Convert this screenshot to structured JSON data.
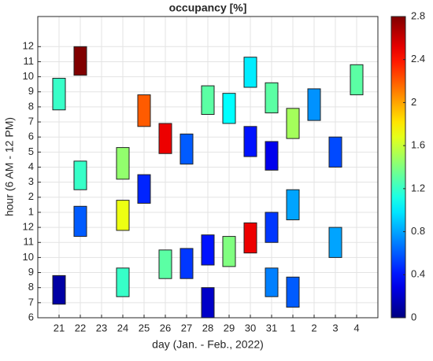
{
  "chart_data": {
    "type": "range-blocks",
    "title": "occupancy [%]",
    "x_label": "day (Jan. - Feb., 2022)",
    "y_label": "hour (6 AM - 12 PM)",
    "categories": [
      "21",
      "22",
      "23",
      "24",
      "25",
      "26",
      "27",
      "28",
      "29",
      "30",
      "31",
      "1",
      "2",
      "3",
      "4"
    ],
    "ylim": [
      6,
      26
    ],
    "yticks": [
      6,
      7,
      8,
      9,
      10,
      11,
      12,
      {
        "value": 13,
        "label": "1"
      },
      {
        "value": 14,
        "label": "2"
      },
      {
        "value": 15,
        "label": "3"
      },
      {
        "value": 16,
        "label": "4"
      },
      {
        "value": 17,
        "label": "5"
      },
      {
        "value": 18,
        "label": "6"
      },
      {
        "value": 19,
        "label": "7"
      },
      {
        "value": 20,
        "label": "8"
      },
      {
        "value": 21,
        "label": "9"
      },
      {
        "value": 22,
        "label": "10"
      },
      {
        "value": 23,
        "label": "11"
      },
      {
        "value": 24,
        "label": "12"
      }
    ],
    "grid": true,
    "colormap": "jet",
    "colorbar": {
      "lim": [
        0,
        2.8
      ],
      "ticks": [
        0,
        0.4,
        0.8,
        1.2,
        1.6,
        2,
        2.4,
        2.8
      ]
    },
    "blocks": [
      {
        "day": "21",
        "start": 19.8,
        "end": 21.9,
        "value": 1.2
      },
      {
        "day": "21",
        "start": 6.9,
        "end": 8.8,
        "value": 0.1
      },
      {
        "day": "22",
        "start": 22.1,
        "end": 24.0,
        "value": 2.8
      },
      {
        "day": "22",
        "start": 14.5,
        "end": 16.4,
        "value": 1.2
      },
      {
        "day": "22",
        "start": 11.4,
        "end": 13.4,
        "value": 0.6
      },
      {
        "day": "24",
        "start": 15.2,
        "end": 17.3,
        "value": 1.45
      },
      {
        "day": "24",
        "start": 11.8,
        "end": 13.8,
        "value": 1.7
      },
      {
        "day": "24",
        "start": 7.4,
        "end": 9.3,
        "value": 1.2
      },
      {
        "day": "25",
        "start": 18.7,
        "end": 20.8,
        "value": 2.2
      },
      {
        "day": "25",
        "start": 13.6,
        "end": 15.5,
        "value": 0.45
      },
      {
        "day": "26",
        "start": 16.9,
        "end": 18.9,
        "value": 2.5
      },
      {
        "day": "26",
        "start": 8.6,
        "end": 10.5,
        "value": 1.3
      },
      {
        "day": "27",
        "start": 16.2,
        "end": 18.2,
        "value": 0.6
      },
      {
        "day": "27",
        "start": 8.6,
        "end": 10.6,
        "value": 0.5
      },
      {
        "day": "28",
        "start": 19.5,
        "end": 21.4,
        "value": 1.3
      },
      {
        "day": "28",
        "start": 9.5,
        "end": 11.5,
        "value": 0.4
      },
      {
        "day": "28",
        "start": 6.0,
        "end": 8.0,
        "value": 0.2
      },
      {
        "day": "29",
        "start": 18.9,
        "end": 20.9,
        "value": 1.05
      },
      {
        "day": "29",
        "start": 9.4,
        "end": 11.4,
        "value": 1.4
      },
      {
        "day": "30",
        "start": 21.3,
        "end": 23.3,
        "value": 1.0
      },
      {
        "day": "30",
        "start": 16.7,
        "end": 18.7,
        "value": 0.4
      },
      {
        "day": "30",
        "start": 10.3,
        "end": 12.3,
        "value": 2.5
      },
      {
        "day": "31",
        "start": 19.6,
        "end": 21.6,
        "value": 1.3
      },
      {
        "day": "31",
        "start": 15.8,
        "end": 17.7,
        "value": 0.3
      },
      {
        "day": "31",
        "start": 11.0,
        "end": 13.0,
        "value": 0.5
      },
      {
        "day": "31",
        "start": 7.4,
        "end": 9.3,
        "value": 0.7
      },
      {
        "day": "1",
        "start": 17.9,
        "end": 19.9,
        "value": 1.5
      },
      {
        "day": "1",
        "start": 12.5,
        "end": 14.5,
        "value": 0.8
      },
      {
        "day": "1",
        "start": 6.7,
        "end": 8.7,
        "value": 0.6
      },
      {
        "day": "2",
        "start": 19.1,
        "end": 21.2,
        "value": 0.75
      },
      {
        "day": "3",
        "start": 16.0,
        "end": 18.0,
        "value": 0.55
      },
      {
        "day": "3",
        "start": 10.0,
        "end": 12.0,
        "value": 0.8
      },
      {
        "day": "4",
        "start": 20.8,
        "end": 22.8,
        "value": 1.3
      }
    ]
  }
}
